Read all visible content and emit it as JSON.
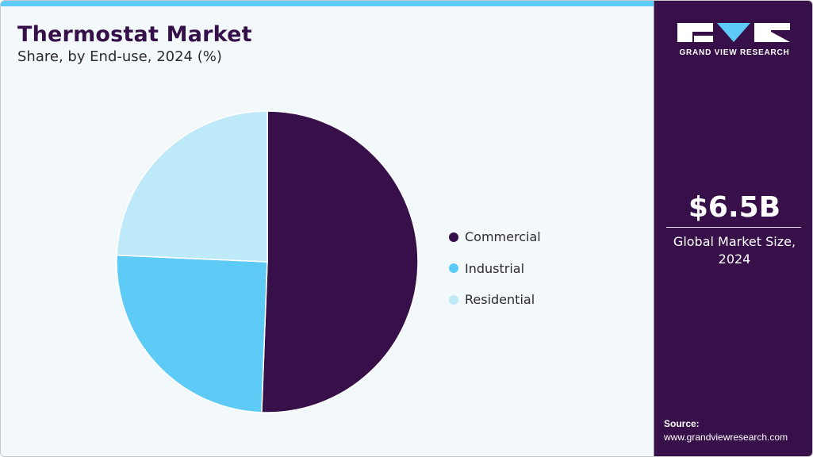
{
  "header": {
    "title": "Thermostat Market",
    "subtitle": "Share, by End-use, 2024 (%)"
  },
  "colors": {
    "accent_bar": "#5ecbf6",
    "brand_purple": "#37104a",
    "commercial": "#37104a",
    "industrial": "#5ecbf6",
    "residential": "#bde9f9",
    "background": "#f3f8fb"
  },
  "legend": [
    {
      "label": "Commercial",
      "color": "#37104a"
    },
    {
      "label": "Industrial",
      "color": "#5ecbf6"
    },
    {
      "label": "Residential",
      "color": "#bde9f9"
    }
  ],
  "sidebar": {
    "brand_name": "GRAND VIEW RESEARCH",
    "market_value": "$6.5B",
    "market_label_line1": "Global Market Size,",
    "market_label_line2": "2024",
    "source_label": "Source:",
    "source_url": "www.grandviewresearch.com"
  },
  "chart_data": {
    "type": "pie",
    "title": "Thermostat Market",
    "subtitle": "Share, by End-use, 2024 (%)",
    "categories": [
      "Commercial",
      "Industrial",
      "Residential"
    ],
    "values": [
      50.6,
      25.1,
      24.3
    ],
    "colors": [
      "#37104a",
      "#5ecbf6",
      "#bde9f9"
    ],
    "start_angle": "12 o'clock, clockwise",
    "legend_position": "right",
    "data_labels": false
  }
}
